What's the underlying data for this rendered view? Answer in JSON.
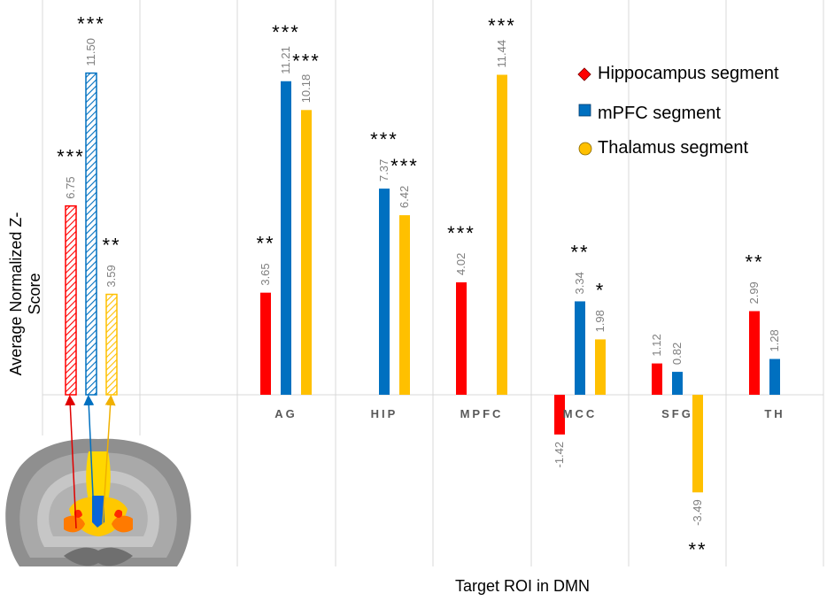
{
  "chart_data": {
    "type": "bar",
    "ylabel": "Average Normalized Z-Score",
    "xlabel": "Target ROI in DMN",
    "seed_group": {
      "values": [
        6.75,
        11.5,
        3.59
      ],
      "stars": [
        "***",
        "***",
        "**"
      ]
    },
    "categories": [
      "AG",
      "HIP",
      "MPFC",
      "MCC",
      "SFG",
      "TH"
    ],
    "series": [
      {
        "name": "Hippocampus segment",
        "color": "#ff0000",
        "values": [
          3.65,
          null,
          4.02,
          -1.42,
          1.12,
          2.99
        ],
        "stars": [
          "**",
          "",
          "***",
          "",
          "",
          "**"
        ]
      },
      {
        "name": "mPFC segment",
        "color": "#0070c0",
        "values": [
          11.21,
          7.37,
          null,
          3.34,
          0.82,
          1.28
        ],
        "stars": [
          "***",
          "***",
          "",
          "**",
          "",
          ""
        ]
      },
      {
        "name": "Thalamus segment",
        "color": "#ffc000",
        "values": [
          10.18,
          6.42,
          11.44,
          1.98,
          -3.49,
          null
        ],
        "stars": [
          "***",
          "***",
          "***",
          "*",
          "**",
          ""
        ]
      }
    ],
    "legend_position": "top-right",
    "grid": "vertical"
  }
}
